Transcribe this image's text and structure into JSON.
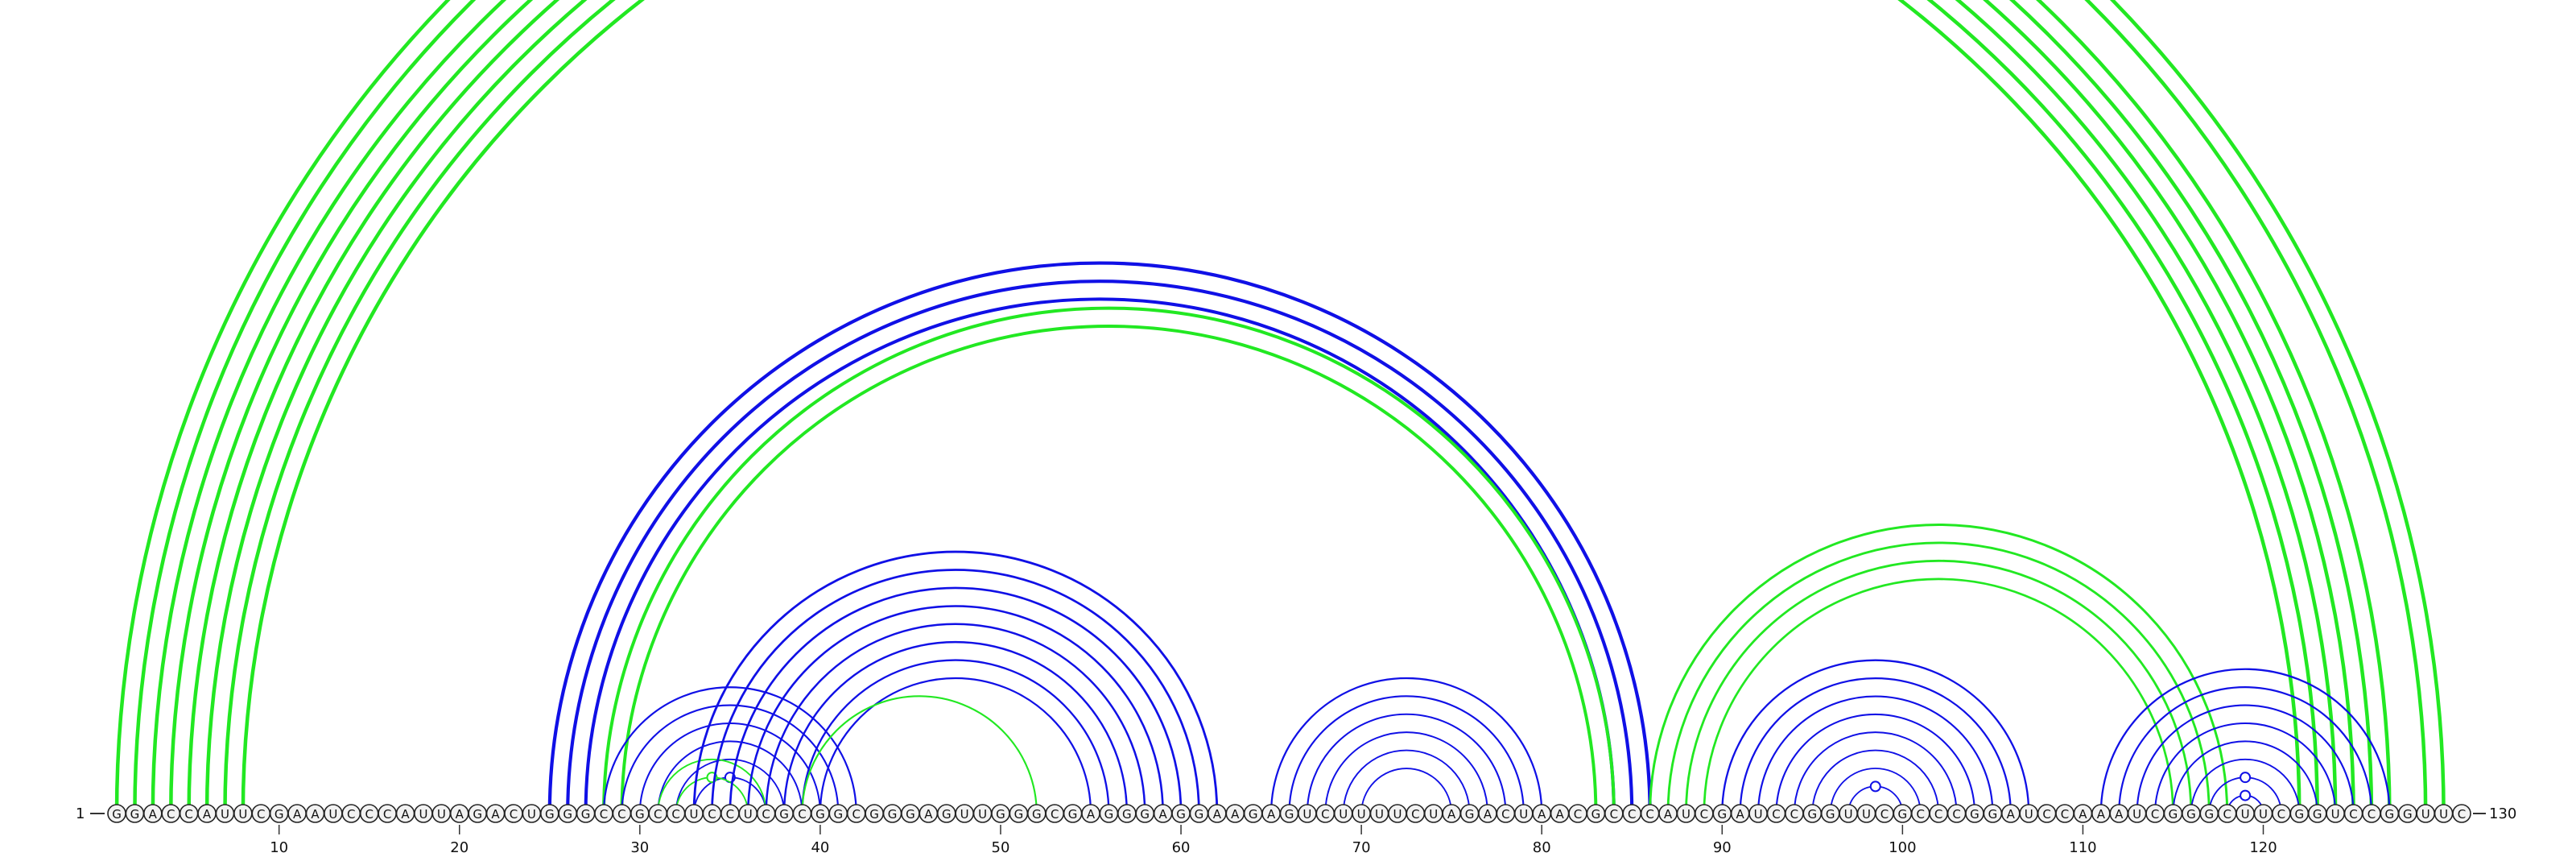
{
  "sequence": "GGACCAUUCGAAUCCCAUUAGACUGGGCCGCCUCCUCGCGGCGGGAGUUGGGCGAGGGAGGAAGAGUCUUUUCUAGACUAACGCCCAUCGAUCCGGUUCGCCCGGAUCCAAAUCGGGCUUCGGUCCGGUUC",
  "start_label": "1",
  "end_label": "130",
  "tick_labels": [
    "10",
    "20",
    "30",
    "40",
    "50",
    "60",
    "70",
    "80",
    "90",
    "100",
    "110",
    "120"
  ],
  "colors": {
    "blue": "#1010e6",
    "green": "#22e822",
    "backbone": "#555555"
  },
  "arc_groups": [
    {
      "name": "green-outer-helix",
      "color": "green",
      "pairs": [
        [
          1,
          130
        ],
        [
          2,
          129
        ],
        [
          3,
          127
        ],
        [
          4,
          126
        ],
        [
          5,
          125
        ],
        [
          6,
          124
        ],
        [
          7,
          123
        ],
        [
          8,
          122
        ]
      ]
    },
    {
      "name": "blue-long-helix",
      "color": "blue",
      "pairs": [
        [
          25,
          86
        ],
        [
          26,
          85
        ],
        [
          27,
          84
        ]
      ]
    },
    {
      "name": "green-long-helix",
      "color": "green",
      "pairs": [
        [
          28,
          84
        ],
        [
          29,
          83
        ]
      ]
    },
    {
      "name": "blue-helix-a",
      "color": "blue",
      "pairs": [
        [
          28,
          42
        ],
        [
          29,
          41
        ],
        [
          30,
          40
        ],
        [
          31,
          39
        ],
        [
          32,
          38
        ],
        [
          33,
          37
        ]
      ]
    },
    {
      "name": "green-helix-a",
      "color": "green",
      "pairs": [
        [
          31,
          37
        ],
        [
          32,
          36
        ]
      ]
    },
    {
      "name": "blue-helix-b",
      "color": "blue",
      "pairs": [
        [
          33,
          62
        ],
        [
          34,
          61
        ],
        [
          35,
          60
        ],
        [
          36,
          59
        ],
        [
          37,
          58
        ],
        [
          38,
          57
        ],
        [
          39,
          56
        ],
        [
          40,
          55
        ]
      ]
    },
    {
      "name": "green-helix-b",
      "color": "green",
      "pairs": [
        [
          39,
          52
        ]
      ]
    },
    {
      "name": "blue-helix-c",
      "color": "blue",
      "pairs": [
        [
          65,
          80
        ],
        [
          66,
          79
        ],
        [
          67,
          78
        ],
        [
          68,
          77
        ],
        [
          69,
          76
        ],
        [
          70,
          75
        ]
      ]
    },
    {
      "name": "green-helix-d",
      "color": "green",
      "pairs": [
        [
          86,
          118
        ],
        [
          87,
          117
        ],
        [
          88,
          116
        ],
        [
          89,
          115
        ]
      ]
    },
    {
      "name": "blue-helix-e",
      "color": "blue",
      "pairs": [
        [
          90,
          107
        ],
        [
          91,
          106
        ],
        [
          92,
          105
        ],
        [
          93,
          104
        ],
        [
          94,
          103
        ],
        [
          95,
          102
        ],
        [
          96,
          101
        ],
        [
          97,
          100
        ]
      ]
    },
    {
      "name": "blue-helix-f",
      "color": "blue",
      "pairs": [
        [
          111,
          127
        ],
        [
          112,
          126
        ],
        [
          113,
          125
        ],
        [
          114,
          124
        ],
        [
          115,
          123
        ],
        [
          116,
          122
        ],
        [
          117,
          121
        ],
        [
          118,
          120
        ]
      ]
    }
  ]
}
